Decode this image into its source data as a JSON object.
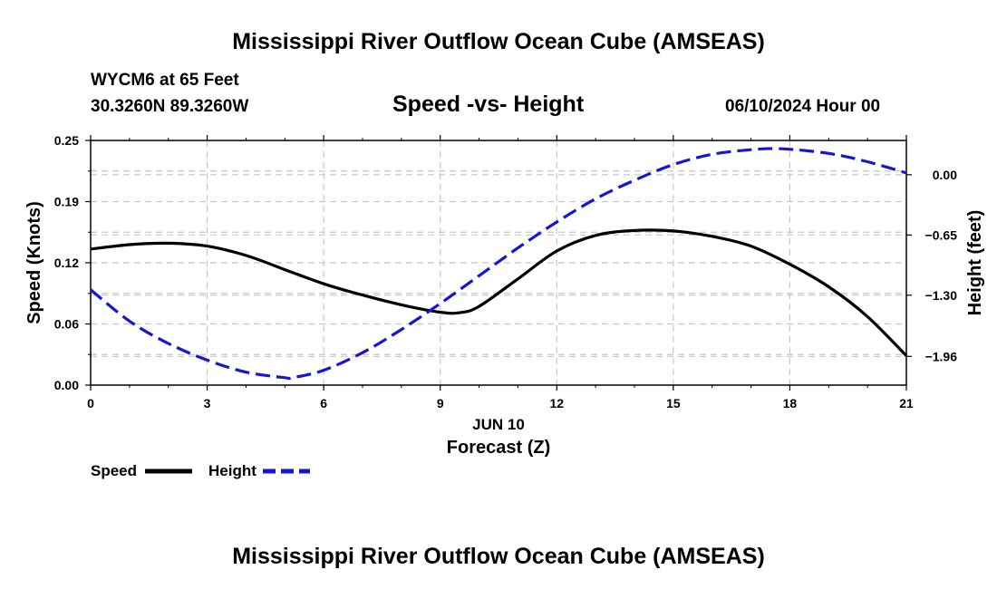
{
  "header": {
    "title": "Mississippi River Outflow Ocean Cube (AMSEAS)",
    "station": "WYCM6 at 65 Feet",
    "coords": "30.3260N  89.3260W",
    "datetime": "06/10/2024 Hour 00",
    "bottom_title": "Mississippi River Outflow Ocean Cube (AMSEAS)"
  },
  "chart_data": {
    "type": "line",
    "title": "Speed -vs- Height",
    "xlabel": "Forecast (Z)",
    "xlabel_date": "JUN 10",
    "ylabel": "Speed (Knots)",
    "y2label": "Height (feet)",
    "xlim": [
      0,
      21
    ],
    "ylim": [
      0,
      0.25
    ],
    "y2lim": [
      -2.27,
      0.37
    ],
    "x_ticks": [
      0,
      3,
      6,
      9,
      12,
      15,
      18,
      21
    ],
    "x_tick_labels": [
      "0",
      "3",
      "6",
      "9",
      "12",
      "15",
      "18",
      "21"
    ],
    "y_ticks": [
      0,
      0.0625,
      0.125,
      0.1875,
      0.25
    ],
    "y_tick_labels": [
      "0.00",
      "0.06",
      "0.12",
      "0.19",
      "0.25"
    ],
    "y2_ticks": [
      -1.96,
      -1.3,
      -0.65,
      0.0
    ],
    "y2_tick_labels": [
      "−1.96",
      "−1.30",
      "−0.65",
      "0.00"
    ],
    "grid": true,
    "legend_position": "bottom-left",
    "series": [
      {
        "name": "Speed",
        "axis": "left",
        "color": "#000000",
        "style": "solid",
        "x": [
          0,
          1,
          2,
          3,
          4,
          5,
          6,
          7,
          8,
          9,
          9.5,
          10,
          11,
          12,
          13,
          14,
          15,
          16,
          17,
          18,
          19,
          20,
          21
        ],
        "values": [
          0.139,
          0.1435,
          0.145,
          0.142,
          0.1325,
          0.118,
          0.1035,
          0.092,
          0.082,
          0.0745,
          0.074,
          0.0805,
          0.1085,
          0.137,
          0.153,
          0.158,
          0.1575,
          0.152,
          0.142,
          0.1235,
          0.1005,
          0.07,
          0.03
        ]
      },
      {
        "name": "Height",
        "axis": "right",
        "color": "#1616d0",
        "style": "dashed",
        "x": [
          0,
          1,
          2,
          3,
          4,
          5,
          5.2,
          6,
          7,
          8,
          9,
          10,
          11,
          12,
          13,
          14,
          15,
          16,
          17,
          17.8,
          19,
          20,
          21
        ],
        "values": [
          -1.24,
          -1.58,
          -1.82,
          -2.0,
          -2.13,
          -2.19,
          -2.19,
          -2.11,
          -1.92,
          -1.67,
          -1.39,
          -1.09,
          -0.79,
          -0.51,
          -0.26,
          -0.06,
          0.11,
          0.22,
          0.27,
          0.28,
          0.23,
          0.14,
          0.02
        ]
      }
    ]
  },
  "legend": {
    "speed_label": "Speed",
    "height_label": "Height"
  }
}
